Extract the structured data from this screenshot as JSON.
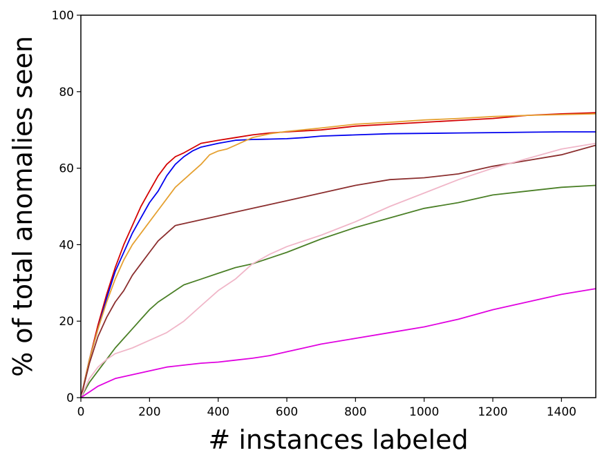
{
  "chart_data": {
    "type": "line",
    "title": "",
    "xlabel": "# instances labeled",
    "ylabel": "% of total anomalies seen",
    "xlim": [
      0,
      1500
    ],
    "ylim": [
      0,
      100
    ],
    "xticks": [
      0,
      200,
      400,
      600,
      800,
      1000,
      1200,
      1400
    ],
    "yticks": [
      0,
      20,
      40,
      60,
      80,
      100
    ],
    "grid": false,
    "legend": "none",
    "series": [
      {
        "color": "#d40000",
        "points": [
          [
            0,
            0
          ],
          [
            25,
            10
          ],
          [
            50,
            19
          ],
          [
            75,
            27
          ],
          [
            100,
            34
          ],
          [
            125,
            40
          ],
          [
            150,
            45
          ],
          [
            175,
            50
          ],
          [
            200,
            54
          ],
          [
            225,
            58
          ],
          [
            250,
            61
          ],
          [
            275,
            63
          ],
          [
            300,
            64
          ],
          [
            350,
            66.5
          ],
          [
            400,
            67.3
          ],
          [
            450,
            68
          ],
          [
            500,
            68.7
          ],
          [
            550,
            69.2
          ],
          [
            600,
            69.5
          ],
          [
            700,
            70
          ],
          [
            800,
            71
          ],
          [
            900,
            71.5
          ],
          [
            1000,
            72
          ],
          [
            1100,
            72.5
          ],
          [
            1200,
            73
          ],
          [
            1300,
            73.8
          ],
          [
            1400,
            74.2
          ],
          [
            1500,
            74.5
          ]
        ]
      },
      {
        "color": "#0000ee",
        "points": [
          [
            0,
            0
          ],
          [
            25,
            10
          ],
          [
            50,
            18
          ],
          [
            75,
            26
          ],
          [
            100,
            33
          ],
          [
            125,
            38
          ],
          [
            150,
            43
          ],
          [
            175,
            47
          ],
          [
            200,
            51
          ],
          [
            225,
            54
          ],
          [
            250,
            58
          ],
          [
            275,
            61
          ],
          [
            300,
            63
          ],
          [
            325,
            64.5
          ],
          [
            350,
            65.5
          ],
          [
            400,
            66.5
          ],
          [
            450,
            67.3
          ],
          [
            500,
            67.5
          ],
          [
            550,
            67.6
          ],
          [
            600,
            67.7
          ],
          [
            650,
            68
          ],
          [
            700,
            68.4
          ],
          [
            800,
            68.7
          ],
          [
            900,
            69
          ],
          [
            1000,
            69.1
          ],
          [
            1100,
            69.2
          ],
          [
            1200,
            69.3
          ],
          [
            1300,
            69.4
          ],
          [
            1400,
            69.5
          ],
          [
            1500,
            69.5
          ]
        ]
      },
      {
        "color": "#e5a030",
        "points": [
          [
            0,
            0
          ],
          [
            25,
            10
          ],
          [
            50,
            18
          ],
          [
            75,
            25
          ],
          [
            100,
            31
          ],
          [
            125,
            36
          ],
          [
            150,
            40
          ],
          [
            175,
            43
          ],
          [
            200,
            46
          ],
          [
            225,
            49
          ],
          [
            250,
            52
          ],
          [
            275,
            55
          ],
          [
            300,
            57
          ],
          [
            325,
            59
          ],
          [
            350,
            61
          ],
          [
            375,
            63.5
          ],
          [
            400,
            64.5
          ],
          [
            425,
            65
          ],
          [
            450,
            66
          ],
          [
            475,
            67
          ],
          [
            500,
            68
          ],
          [
            550,
            69
          ],
          [
            600,
            69.6
          ],
          [
            700,
            70.5
          ],
          [
            800,
            71.5
          ],
          [
            900,
            72
          ],
          [
            1000,
            72.6
          ],
          [
            1100,
            73
          ],
          [
            1200,
            73.5
          ],
          [
            1300,
            73.8
          ],
          [
            1400,
            74
          ],
          [
            1500,
            74.2
          ]
        ]
      },
      {
        "color": "#8b2e2e",
        "points": [
          [
            0,
            0
          ],
          [
            25,
            9
          ],
          [
            50,
            16
          ],
          [
            75,
            21
          ],
          [
            100,
            25
          ],
          [
            125,
            28
          ],
          [
            150,
            32
          ],
          [
            175,
            35
          ],
          [
            200,
            38
          ],
          [
            225,
            41
          ],
          [
            250,
            43
          ],
          [
            275,
            45
          ],
          [
            300,
            45.5
          ],
          [
            350,
            46.5
          ],
          [
            400,
            47.5
          ],
          [
            450,
            48.5
          ],
          [
            500,
            49.5
          ],
          [
            550,
            50.5
          ],
          [
            600,
            51.5
          ],
          [
            700,
            53.5
          ],
          [
            800,
            55.5
          ],
          [
            900,
            57
          ],
          [
            1000,
            57.5
          ],
          [
            1100,
            58.5
          ],
          [
            1200,
            60.5
          ],
          [
            1300,
            62
          ],
          [
            1400,
            63.5
          ],
          [
            1500,
            66
          ]
        ]
      },
      {
        "color": "#4a7f26",
        "points": [
          [
            0,
            0
          ],
          [
            25,
            4
          ],
          [
            50,
            7
          ],
          [
            75,
            10
          ],
          [
            100,
            13
          ],
          [
            125,
            15.5
          ],
          [
            150,
            18
          ],
          [
            175,
            20.5
          ],
          [
            200,
            23
          ],
          [
            225,
            25
          ],
          [
            250,
            26.5
          ],
          [
            275,
            28
          ],
          [
            300,
            29.5
          ],
          [
            350,
            31
          ],
          [
            400,
            32.5
          ],
          [
            450,
            34
          ],
          [
            500,
            35
          ],
          [
            550,
            36.5
          ],
          [
            600,
            38
          ],
          [
            700,
            41.5
          ],
          [
            800,
            44.5
          ],
          [
            900,
            47
          ],
          [
            1000,
            49.5
          ],
          [
            1100,
            51
          ],
          [
            1200,
            53
          ],
          [
            1300,
            54
          ],
          [
            1400,
            55
          ],
          [
            1500,
            55.5
          ]
        ]
      },
      {
        "color": "#f0b6c8",
        "points": [
          [
            0,
            0
          ],
          [
            25,
            5
          ],
          [
            50,
            8
          ],
          [
            75,
            10
          ],
          [
            100,
            11.5
          ],
          [
            150,
            13
          ],
          [
            200,
            15
          ],
          [
            250,
            17
          ],
          [
            300,
            20
          ],
          [
            350,
            24
          ],
          [
            400,
            28
          ],
          [
            450,
            31
          ],
          [
            500,
            35
          ],
          [
            550,
            37.5
          ],
          [
            600,
            39.5
          ],
          [
            650,
            41
          ],
          [
            700,
            42.5
          ],
          [
            800,
            46
          ],
          [
            900,
            50
          ],
          [
            1000,
            53.5
          ],
          [
            1100,
            57
          ],
          [
            1200,
            60
          ],
          [
            1300,
            62.5
          ],
          [
            1400,
            65
          ],
          [
            1500,
            66.5
          ]
        ]
      },
      {
        "color": "#e000e0",
        "points": [
          [
            0,
            0
          ],
          [
            25,
            1.5
          ],
          [
            50,
            3
          ],
          [
            75,
            4
          ],
          [
            100,
            5
          ],
          [
            150,
            6
          ],
          [
            200,
            7
          ],
          [
            250,
            8
          ],
          [
            300,
            8.5
          ],
          [
            350,
            9
          ],
          [
            400,
            9.3
          ],
          [
            450,
            9.8
          ],
          [
            500,
            10.3
          ],
          [
            550,
            11
          ],
          [
            600,
            12
          ],
          [
            650,
            13
          ],
          [
            700,
            14
          ],
          [
            800,
            15.5
          ],
          [
            900,
            17
          ],
          [
            1000,
            18.5
          ],
          [
            1100,
            20.5
          ],
          [
            1200,
            23
          ],
          [
            1300,
            25
          ],
          [
            1400,
            27
          ],
          [
            1500,
            28.5
          ]
        ]
      }
    ]
  }
}
